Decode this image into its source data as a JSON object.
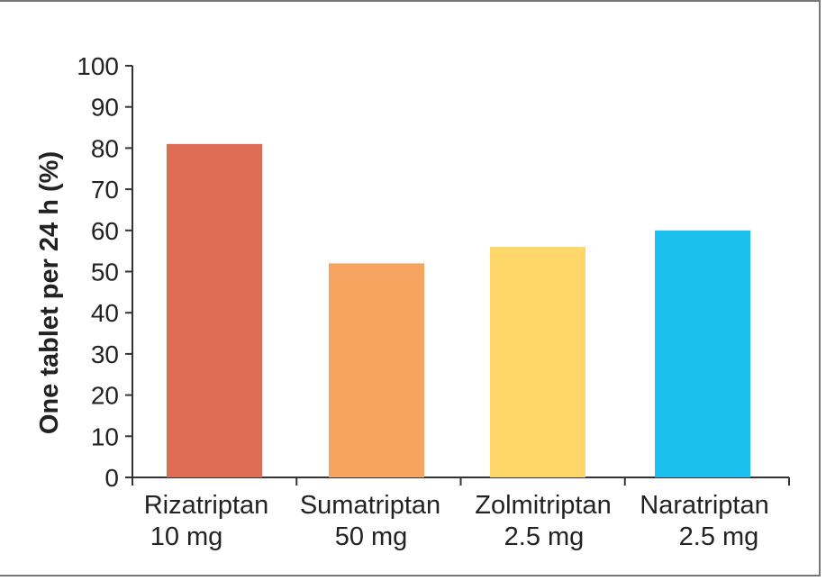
{
  "chart_data": {
    "type": "bar",
    "ylabel": "One tablet per 24 h (%)",
    "xlabel": "",
    "ylim": [
      0,
      100
    ],
    "yticks": [
      0,
      10,
      20,
      30,
      40,
      50,
      60,
      70,
      80,
      90,
      100
    ],
    "categories": [
      {
        "line1": "Rizatriptan",
        "line2": "10 mg"
      },
      {
        "line1": "Sumatriptan",
        "line2": "50 mg"
      },
      {
        "line1": "Zolmitriptan",
        "line2": "2.5 mg"
      },
      {
        "line1": "Naratriptan",
        "line2": "2.5 mg"
      }
    ],
    "values": [
      81,
      52,
      56,
      60
    ],
    "colors": [
      "#dd6d55",
      "#f6a45f",
      "#fed66a",
      "#1bc0ef"
    ],
    "grid": false,
    "legend": "none"
  }
}
